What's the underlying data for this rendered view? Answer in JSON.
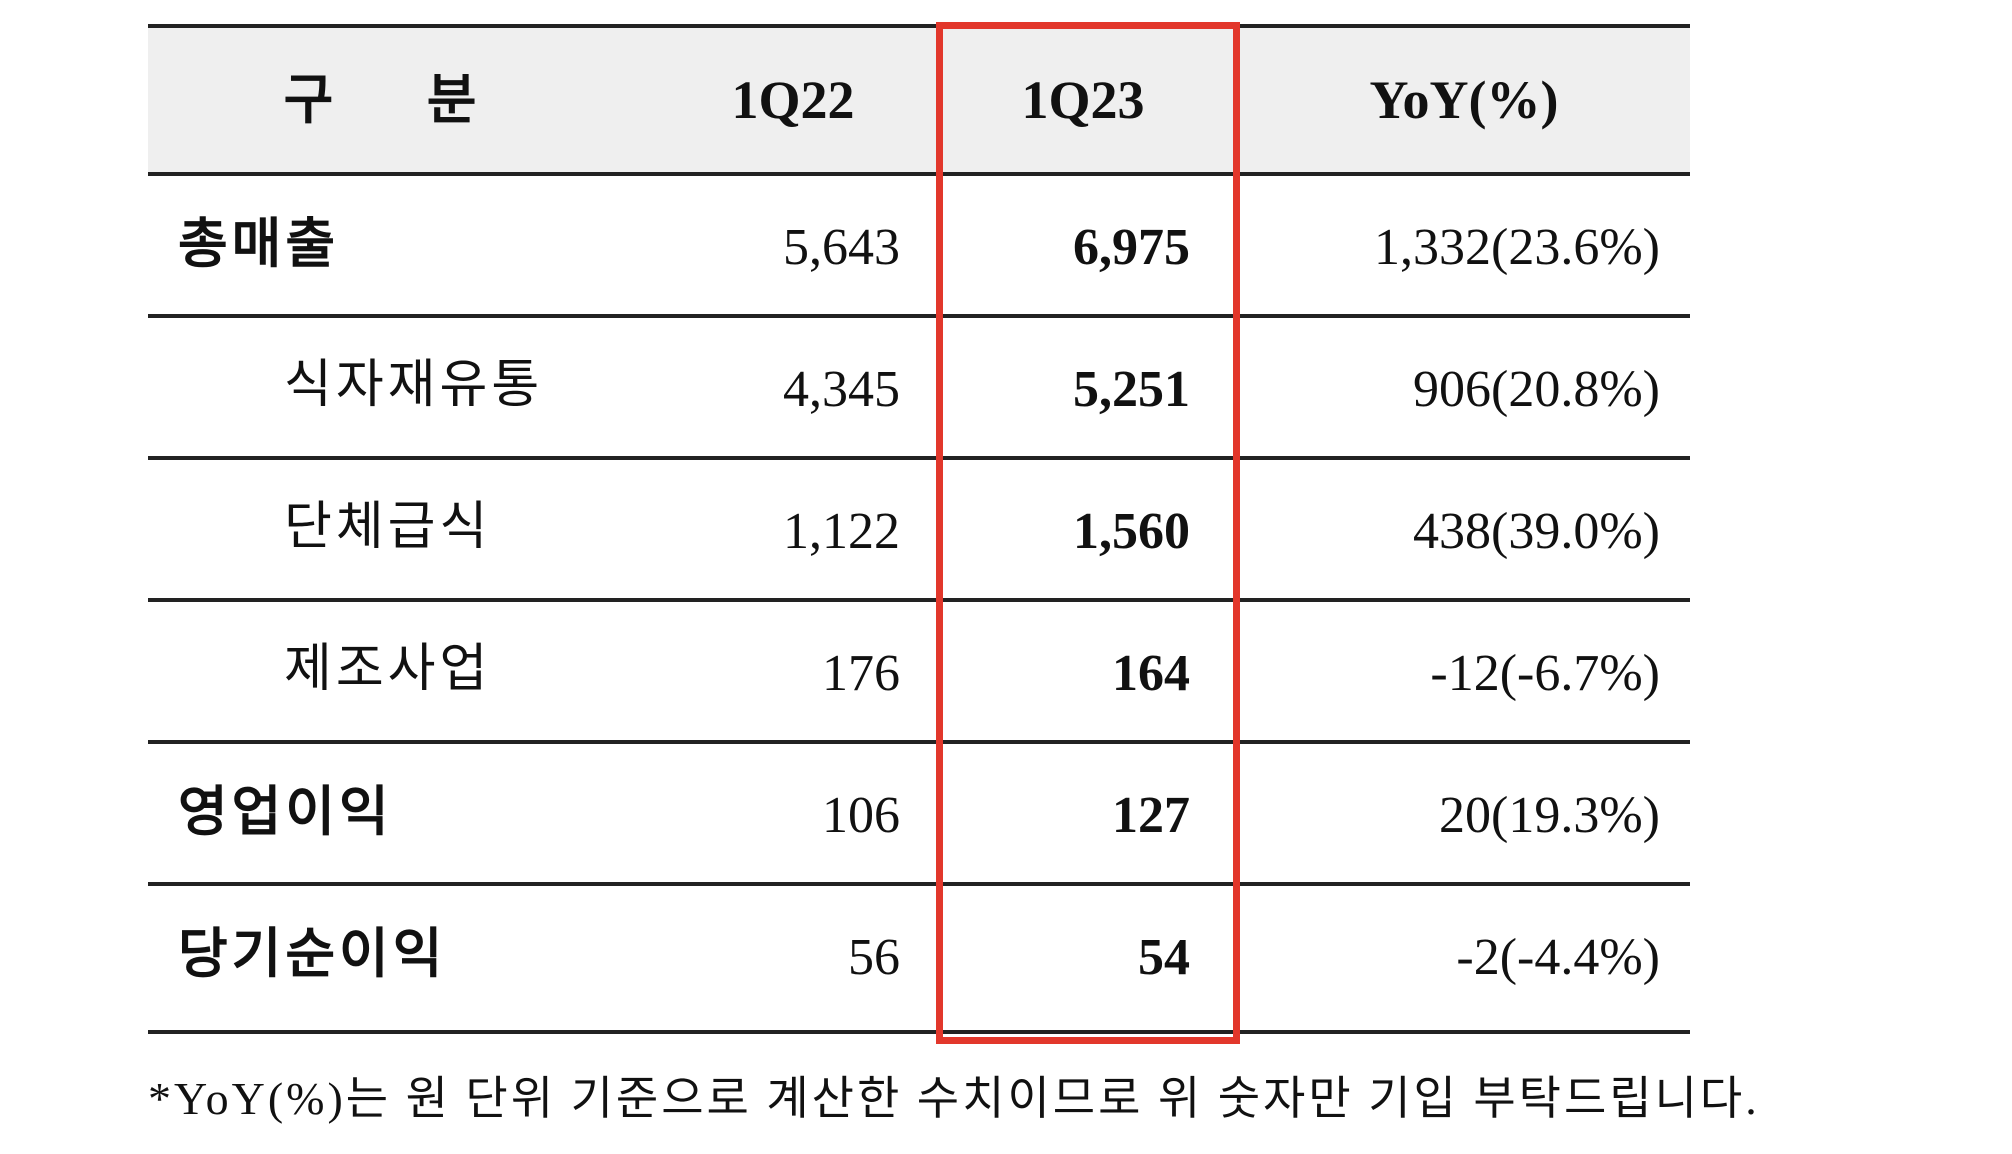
{
  "table": {
    "header": [
      "구 분",
      "1Q22",
      "1Q23",
      "YoY(%)"
    ],
    "rows": [
      [
        "총매출",
        "5,643",
        "6,975",
        "1,332(23.6%)"
      ],
      [
        "식자재유통",
        "4,345",
        "5,251",
        "906(20.8%)"
      ],
      [
        "단체급식",
        "1,122",
        "1,560",
        "438(39.0%)"
      ],
      [
        "제조사업",
        "176",
        "164",
        "-12(-6.7%)"
      ],
      [
        "영업이익",
        "106",
        "127",
        "20(19.3%)"
      ],
      [
        "당기순이익",
        "56",
        "54",
        "-2(-4.4%)"
      ]
    ]
  },
  "footnote": "*YoY(%)는 원 단위 기준으로 계산한 수치이므로 위 숫자만 기입 부탁드립니다."
}
